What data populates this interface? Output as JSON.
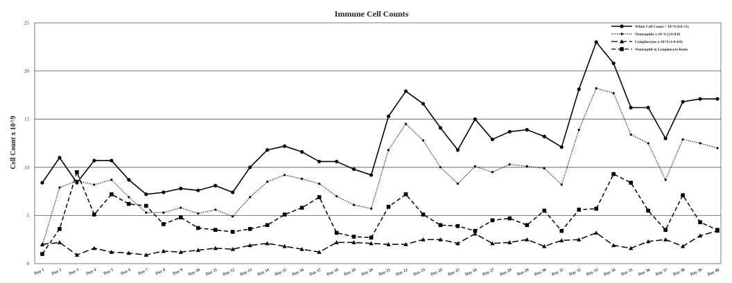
{
  "chart_data": {
    "type": "line",
    "title": "Immune Cell Counts",
    "xlabel": "",
    "ylabel": "Cell Count x 10^9",
    "ylim": [
      0,
      25
    ],
    "yticks": [
      0,
      5,
      10,
      15,
      20,
      25
    ],
    "grid": "horizontal",
    "legend_position": "top-right",
    "categories": [
      "Day 1",
      "Day 2",
      "Day 3",
      "Day 4",
      "Day 5",
      "Day 6",
      "Day 7",
      "Day 8",
      "Day 9",
      "Day 10",
      "Day 11",
      "Day 12",
      "Day 13",
      "Day 14",
      "Day 15",
      "Day 16",
      "Day 17",
      "Day 18",
      "Day 19",
      "Day 20",
      "Day 21",
      "Day 22",
      "Day 23",
      "Day 24",
      "Day 25",
      "Day 26",
      "Day 27",
      "Day 28",
      "Day 29",
      "Day 30",
      "Day 31",
      "Day 32",
      "Day 33",
      "Day 34",
      "Day 35",
      "Day 36",
      "Day 37",
      "Day 38",
      "Day 39",
      "Day 40"
    ],
    "series": [
      {
        "name": "White Cell Count × 10^9 (4.0-11)",
        "marker": "circle",
        "dash": "solid",
        "values": [
          8.4,
          11.0,
          8.4,
          10.7,
          10.7,
          8.7,
          7.2,
          7.4,
          7.8,
          7.6,
          8.1,
          7.4,
          10.0,
          11.8,
          12.2,
          11.6,
          10.6,
          10.6,
          9.8,
          9.2,
          15.3,
          17.9,
          16.6,
          14.1,
          11.8,
          15.0,
          12.9,
          13.7,
          13.9,
          13.2,
          12.1,
          18.1,
          23.0,
          20.8,
          16.2,
          16.2,
          13.0,
          16.8,
          17.1,
          17.1
        ]
      },
      {
        "name": "Neutrophils x 10^9 (2.0-8.0)",
        "marker": "circle-small",
        "dash": "dotted",
        "values": [
          1.9,
          7.9,
          8.6,
          8.2,
          8.7,
          6.9,
          5.3,
          5.3,
          5.8,
          5.2,
          5.6,
          4.9,
          6.9,
          8.5,
          9.2,
          8.8,
          8.3,
          7.0,
          6.1,
          5.7,
          11.8,
          14.5,
          12.8,
          10.0,
          8.3,
          10.1,
          9.5,
          10.3,
          10.1,
          9.9,
          8.2,
          13.9,
          18.2,
          17.7,
          13.4,
          12.5,
          8.7,
          12.9,
          12.5,
          12.0
        ]
      },
      {
        "name": "Lymphocytes x 10^9 (1.0-4.0)",
        "marker": "triangle",
        "dash": "long-dash",
        "values": [
          2.0,
          2.2,
          0.9,
          1.6,
          1.2,
          1.1,
          0.9,
          1.3,
          1.2,
          1.4,
          1.6,
          1.5,
          1.9,
          2.1,
          1.8,
          1.5,
          1.2,
          2.2,
          2.2,
          2.1,
          2.0,
          2.0,
          2.5,
          2.5,
          2.1,
          3.1,
          2.1,
          2.2,
          2.5,
          1.8,
          2.4,
          2.5,
          3.2,
          1.9,
          1.6,
          2.3,
          2.5,
          1.8,
          2.9,
          3.4
        ]
      },
      {
        "name": "Neutrophil to Lymphocyte Ratio",
        "marker": "square",
        "dash": "dash",
        "values": [
          1.0,
          3.6,
          9.5,
          5.1,
          7.2,
          6.2,
          6.0,
          4.1,
          4.8,
          3.7,
          3.5,
          3.3,
          3.6,
          4.0,
          5.1,
          5.8,
          6.9,
          3.2,
          2.8,
          2.7,
          5.9,
          7.2,
          5.1,
          4.0,
          3.9,
          3.4,
          4.5,
          4.7,
          4.0,
          5.5,
          3.4,
          5.6,
          5.7,
          9.3,
          8.4,
          5.5,
          3.5,
          7.1,
          4.3,
          3.5
        ]
      }
    ]
  },
  "colors": {
    "line": "#000000",
    "grid": "#555555",
    "background": "#ffffff"
  }
}
